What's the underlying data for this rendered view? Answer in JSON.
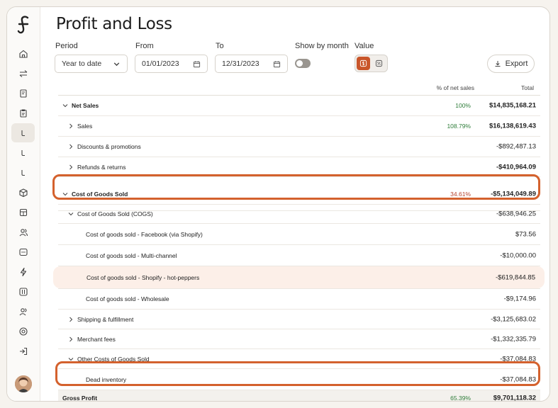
{
  "page": {
    "title": "Profit and Loss"
  },
  "filters": {
    "period": {
      "label": "Period",
      "value": "Year to date"
    },
    "from": {
      "label": "From",
      "value": "01/01/2023"
    },
    "to": {
      "label": "To",
      "value": "12/31/2023"
    },
    "show_by_month": {
      "label": "Show by month",
      "enabled": false
    },
    "value": {
      "label": "Value",
      "options": [
        "dollar-icon",
        "percent-icon"
      ],
      "selected": "dollar-icon"
    }
  },
  "export": {
    "label": "Export"
  },
  "table": {
    "headers": {
      "pct": "% of net sales",
      "total": "Total"
    },
    "rows": [
      {
        "label": "Net Sales",
        "pct": "100%",
        "total": "$14,835,168.21"
      },
      {
        "label": "Sales",
        "pct": "108.79%",
        "total": "$16,138,619.43"
      },
      {
        "label": "Discounts & promotions",
        "pct": "",
        "total": "-$892,487.13"
      },
      {
        "label": "Refunds & returns",
        "pct": "",
        "total": "-$410,964.09"
      },
      {
        "label": "Cost of Goods Sold",
        "pct": "34.61%",
        "total": "-$5,134,049.89"
      },
      {
        "label": "Cost of Goods Sold (COGS)",
        "pct": "",
        "total": "-$638,946.25"
      },
      {
        "label": "Cost of goods sold - Facebook (via Shopify)",
        "pct": "",
        "total": "$73.56"
      },
      {
        "label": "Cost of goods sold - Multi-channel",
        "pct": "",
        "total": "-$10,000.00"
      },
      {
        "label": "Cost of goods sold - Shopify - hot-peppers",
        "pct": "",
        "total": "-$619,844.85"
      },
      {
        "label": "Cost of goods sold - Wholesale",
        "pct": "",
        "total": "-$9,174.96"
      },
      {
        "label": "Shipping & fulfillment",
        "pct": "",
        "total": "-$3,125,683.02"
      },
      {
        "label": "Merchant fees",
        "pct": "",
        "total": "-$1,332,335.79"
      },
      {
        "label": "Other Costs of Goods Sold",
        "pct": "",
        "total": "-$37,084.83"
      },
      {
        "label": "Dead inventory",
        "pct": "",
        "total": "-$37,084.83"
      },
      {
        "label": "Gross Profit",
        "pct": "65.39%",
        "total": "$9,701,118.32"
      }
    ]
  },
  "colors": {
    "accent": "#c9552a",
    "annotation": "#d4612d",
    "positive": "#2f7d3a",
    "negative": "#b5432c"
  }
}
